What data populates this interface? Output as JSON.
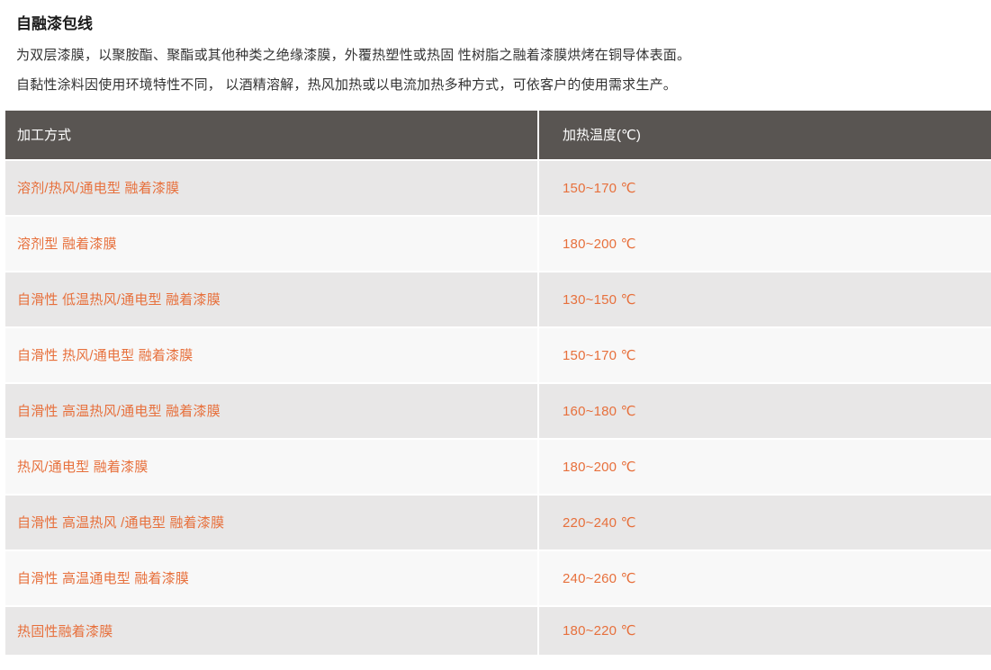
{
  "page": {
    "title": "自融漆包线",
    "paragraphs": [
      "为双层漆膜，以聚胺酯、聚酯或其他种类之绝缘漆膜，外覆热塑性或热固 性树脂之融着漆膜烘烤在铜导体表面。",
      "自黏性涂料因使用环境特性不同， 以酒精溶解，热风加热或以电流加热多种方式，可依客户的使用需求生产。"
    ]
  },
  "table": {
    "headers": [
      "加工方式",
      "加热温度(℃)"
    ],
    "rows": [
      {
        "method": "溶剂/热风/通电型 融着漆膜",
        "temp": "150~170 ℃"
      },
      {
        "method": "溶剂型 融着漆膜",
        "temp": "180~200 ℃"
      },
      {
        "method": "自滑性 低温热风/通电型 融着漆膜",
        "temp": "130~150 ℃"
      },
      {
        "method": "自滑性 热风/通电型 融着漆膜",
        "temp": "150~170 ℃"
      },
      {
        "method": "自滑性 高温热风/通电型 融着漆膜",
        "temp": "160~180 ℃"
      },
      {
        "method": "热风/通电型 融着漆膜",
        "temp": "180~200 ℃"
      },
      {
        "method": "自滑性 高温热风 /通电型 融着漆膜",
        "temp": "220~240 ℃"
      },
      {
        "method": "自滑性 高温通电型 融着漆膜",
        "temp": "240~260 ℃"
      },
      {
        "method": "热固性融着漆膜",
        "temp": "180~220 ℃"
      }
    ]
  },
  "colors": {
    "header_bg": "#595552",
    "header_text": "#ffffff",
    "row_odd_bg": "#e8e7e7",
    "row_even_bg": "#f8f8f8",
    "accent_orange": "#e7703c",
    "body_text": "#333333",
    "title_text": "#1a1a1a"
  }
}
